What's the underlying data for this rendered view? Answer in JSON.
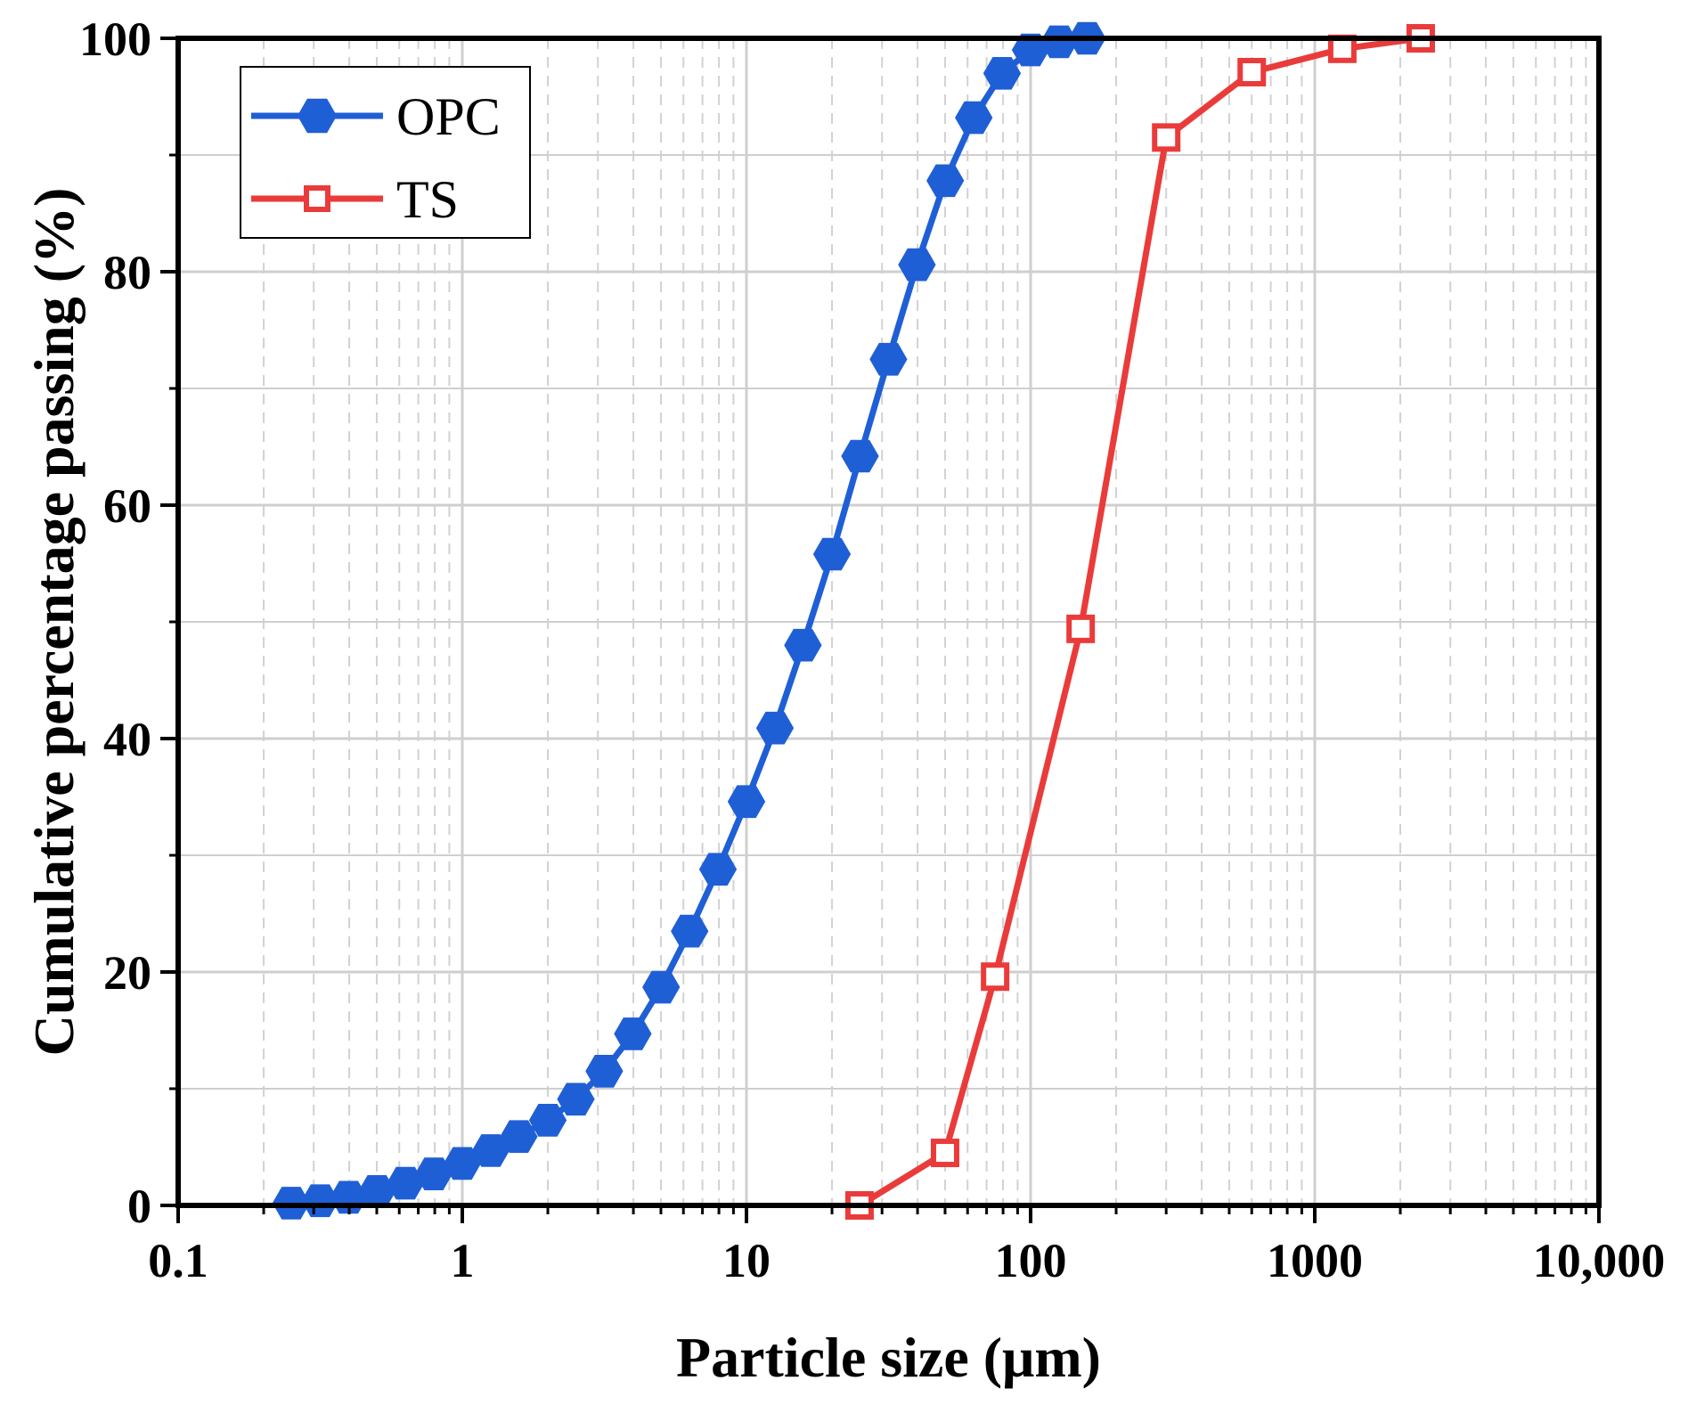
{
  "chart_data": {
    "type": "line",
    "xlabel": "Particle size (μm)",
    "ylabel": "Cumulative percentage passing (%)",
    "x_scale": "log",
    "xlim": [
      0.1,
      10000
    ],
    "ylim": [
      0,
      100
    ],
    "x_ticks": [
      0.1,
      1,
      10,
      100,
      1000,
      10000
    ],
    "x_tick_labels": [
      "0.1",
      "1",
      "10",
      "100",
      "1000",
      "10,000"
    ],
    "y_ticks": [
      0,
      20,
      40,
      60,
      80,
      100
    ],
    "y_tick_labels": [
      "0",
      "20",
      "40",
      "60",
      "80",
      "100"
    ],
    "grid": true,
    "legend_position": "top-left",
    "series": [
      {
        "name": "OPC",
        "color": "#1f5fd6",
        "marker": "hexagon-filled",
        "x": [
          0.25,
          0.316,
          0.398,
          0.501,
          0.631,
          0.794,
          1.0,
          1.26,
          1.58,
          2.0,
          2.51,
          3.16,
          3.98,
          5.01,
          6.31,
          7.94,
          10.0,
          12.6,
          15.8,
          20.0,
          25.1,
          31.6,
          39.8,
          50.1,
          63.1,
          79.4,
          100,
          126,
          158
        ],
        "y": [
          0.2,
          0.4,
          0.7,
          1.2,
          1.9,
          2.7,
          3.6,
          4.7,
          5.9,
          7.3,
          9.1,
          11.5,
          14.7,
          18.7,
          23.5,
          28.8,
          34.6,
          40.9,
          48.0,
          55.8,
          64.2,
          72.5,
          80.6,
          87.8,
          93.2,
          97.0,
          99.0,
          99.7,
          100
        ]
      },
      {
        "name": "TS",
        "color": "#ea3b3b",
        "marker": "square-open",
        "x": [
          25,
          50,
          75,
          150,
          300,
          600,
          1250,
          2360
        ],
        "y": [
          0,
          4.5,
          19.6,
          49.4,
          91.5,
          97.1,
          99.1,
          100
        ]
      }
    ]
  }
}
